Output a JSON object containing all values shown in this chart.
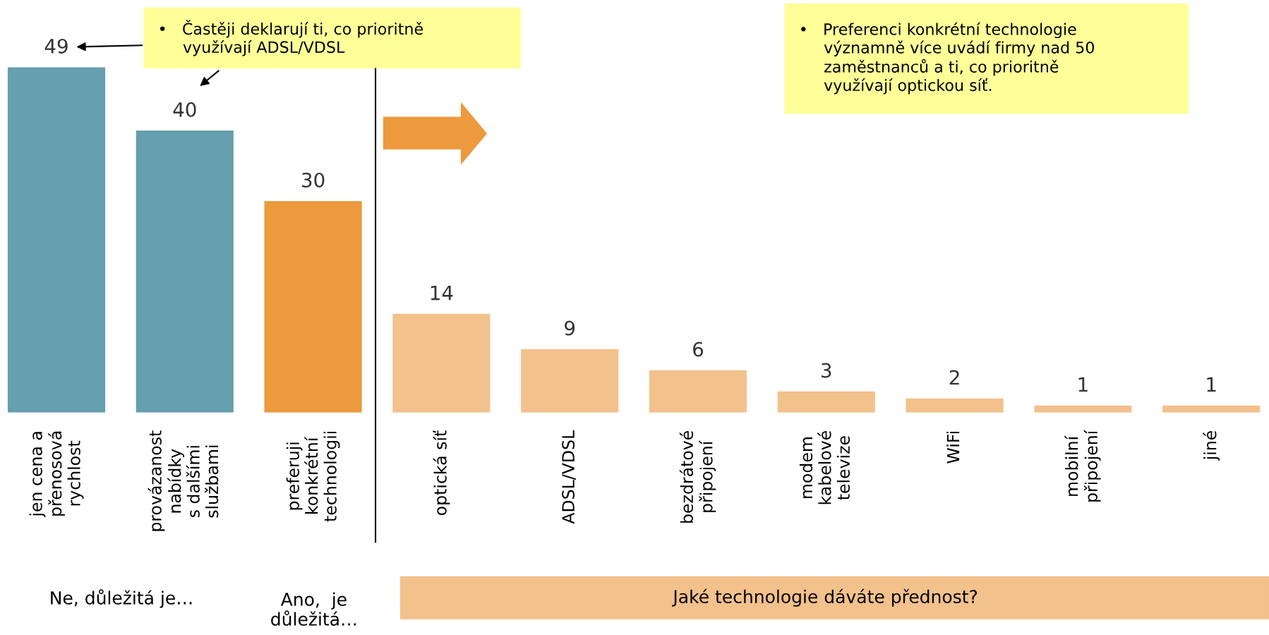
{
  "chart_data": {
    "type": "bar",
    "categories": [
      "jen cena a\npřenosová\nrychlost",
      "provázanost\nnabídky\ns dalšími\nslužbami",
      "preferuji\nkonkrétní\ntechnologii",
      "optická síť",
      "ADSL/VDSL",
      "bezdrátové\npřipojení",
      "modem\nkabelové\ntelevize",
      "WiFi",
      "mobilní\npřipojení",
      "jiné"
    ],
    "values": [
      49,
      40,
      30,
      14,
      9,
      6,
      3,
      2,
      1,
      1
    ],
    "colors": [
      "#669fad",
      "#669fad",
      "#ec9a3d",
      "#f3c18c",
      "#f3c18c",
      "#f3c18c",
      "#f3c18c",
      "#f3c18c",
      "#f3c18c",
      "#f3c18c"
    ],
    "data_labels": true,
    "annotations": [
      "•   Častěji deklarují ti, co prioritně\n     využívají ADSL/VDSL",
      "•   Preferenci konkrétní technologie\n     významně více uvádí firmy nad 50\n     zaměstnanců a ti, co prioritně\n     využívají optickou síť.",
      "Ne, důležitá je…",
      "Ano,  je\ndůležitá…",
      "Jaké technologie dáváte přednost?"
    ]
  }
}
